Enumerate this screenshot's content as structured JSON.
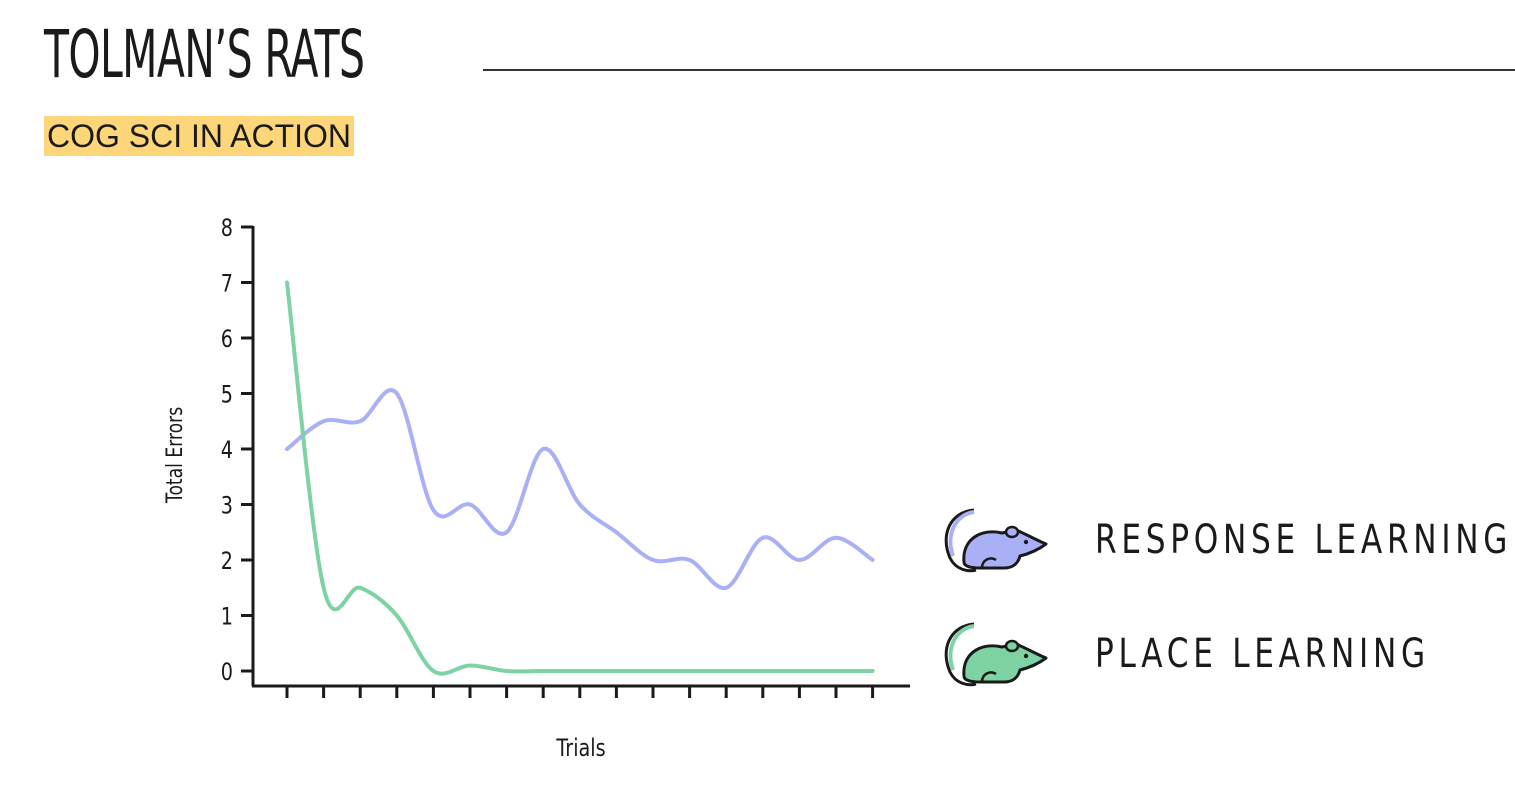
{
  "header": {
    "title": "TOLMAN’S RATS",
    "subtitle": "COG SCI IN ACTION"
  },
  "colors": {
    "response": "#aab0f5",
    "place": "#7dd3a3",
    "highlight": "#fdd679",
    "ink": "#1a1a1a"
  },
  "chart_data": {
    "type": "line",
    "xlabel": "Trials",
    "ylabel": "Total Errors",
    "ylim": [
      0,
      8
    ],
    "yticks": [
      0,
      1,
      2,
      3,
      4,
      5,
      6,
      7,
      8
    ],
    "x": [
      1,
      2,
      3,
      4,
      5,
      6,
      7,
      8,
      9,
      10,
      11,
      12,
      13,
      14,
      15,
      16,
      17
    ],
    "grid": false,
    "legend_position": "right",
    "series": [
      {
        "name": "RESPONSE LEARNING",
        "color": "#aab0f5",
        "values": [
          4.0,
          4.5,
          4.5,
          5.0,
          2.9,
          3.0,
          2.5,
          4.0,
          3.0,
          2.5,
          2.0,
          2.0,
          1.5,
          2.4,
          2.0,
          2.4,
          2.0
        ]
      },
      {
        "name": "PLACE LEARNING",
        "color": "#7dd3a3",
        "values": [
          7.0,
          1.5,
          1.5,
          1.0,
          0.0,
          0.1,
          0.0,
          0.0,
          0.0,
          0.0,
          0.0,
          0.0,
          0.0,
          0.0,
          0.0,
          0.0,
          0.0
        ]
      }
    ]
  },
  "legend": {
    "items": [
      {
        "label": "RESPONSE LEARNING",
        "icon": "rat-icon",
        "color": "#aab0f5"
      },
      {
        "label": "PLACE LEARNING",
        "icon": "rat-icon",
        "color": "#7dd3a3"
      }
    ]
  }
}
